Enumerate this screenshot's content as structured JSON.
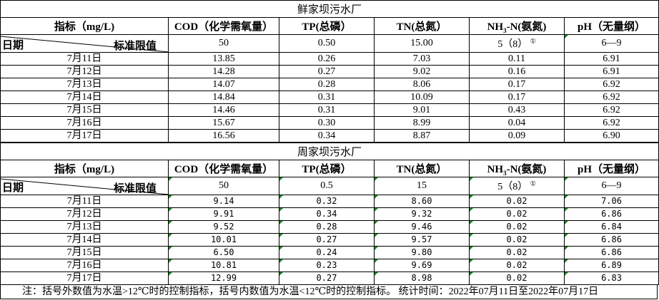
{
  "plants": [
    {
      "name": "鲜家坝污水厂",
      "headers": [
        "指标（mg/L)",
        "COD（化学需氧量）",
        "TP(总磷）",
        "TN(总氮）",
        "NH3-N(氨氮)",
        "pH（无量纲）"
      ],
      "date_label": "日期",
      "standard_label": "标准限值",
      "standards": [
        "50",
        "0.50",
        "15.00",
        "5（8）",
        "6—9"
      ],
      "standard_footnote": "①",
      "rows": [
        [
          "7月11日",
          "13.85",
          "0.26",
          "7.03",
          "0.11",
          "6.91"
        ],
        [
          "7月12日",
          "14.28",
          "0.27",
          "9.02",
          "0.16",
          "6.91"
        ],
        [
          "7月13日",
          "14.07",
          "0.28",
          "8.06",
          "0.17",
          "6.92"
        ],
        [
          "7月14日",
          "14.84",
          "0.31",
          "10.09",
          "0.17",
          "6.92"
        ],
        [
          "7月15日",
          "14.46",
          "0.31",
          "9.01",
          "0.43",
          "6.92"
        ],
        [
          "7月16日",
          "15.67",
          "0.30",
          "8.99",
          "0.04",
          "6.92"
        ],
        [
          "7月17日",
          "16.56",
          "0.34",
          "8.87",
          "0.09",
          "6.90"
        ]
      ]
    },
    {
      "name": "周家坝污水厂",
      "headers": [
        "指标（mg/L)",
        "COD（化学需氧量）",
        "TP(总磷）",
        "TN(总氮）",
        "NH3-N(氨氮)",
        "pH（无量纲）"
      ],
      "date_label": "日期",
      "standard_label": "标准限值",
      "standards": [
        "50",
        "0.5",
        "15",
        "5（8）",
        "6—9"
      ],
      "standard_footnote": "①",
      "rows": [
        [
          "7月11日",
          "9.14",
          "0.32",
          "8.60",
          "0.02",
          "7.06"
        ],
        [
          "7月12日",
          "9.91",
          "0.34",
          "9.32",
          "0.02",
          "6.86"
        ],
        [
          "7月13日",
          "9.52",
          "0.28",
          "9.46",
          "0.02",
          "6.84"
        ],
        [
          "7月14日",
          "10.01",
          "0.27",
          "9.57",
          "0.02",
          "6.86"
        ],
        [
          "7月15日",
          "6.50",
          "0.24",
          "9.80",
          "0.02",
          "6.86"
        ],
        [
          "7月16日",
          "10.81",
          "0.23",
          "9.69",
          "0.02",
          "6.89"
        ],
        [
          "7月17日",
          "12.99",
          "0.27",
          "8.98",
          "0.02",
          "6.83"
        ]
      ]
    }
  ],
  "note": "注：括号外数值为水温>12℃时的控制指标，括号内数值为水温<12℃时的控制指标。   统计时间：2022年07月11日至2022年07月17日"
}
